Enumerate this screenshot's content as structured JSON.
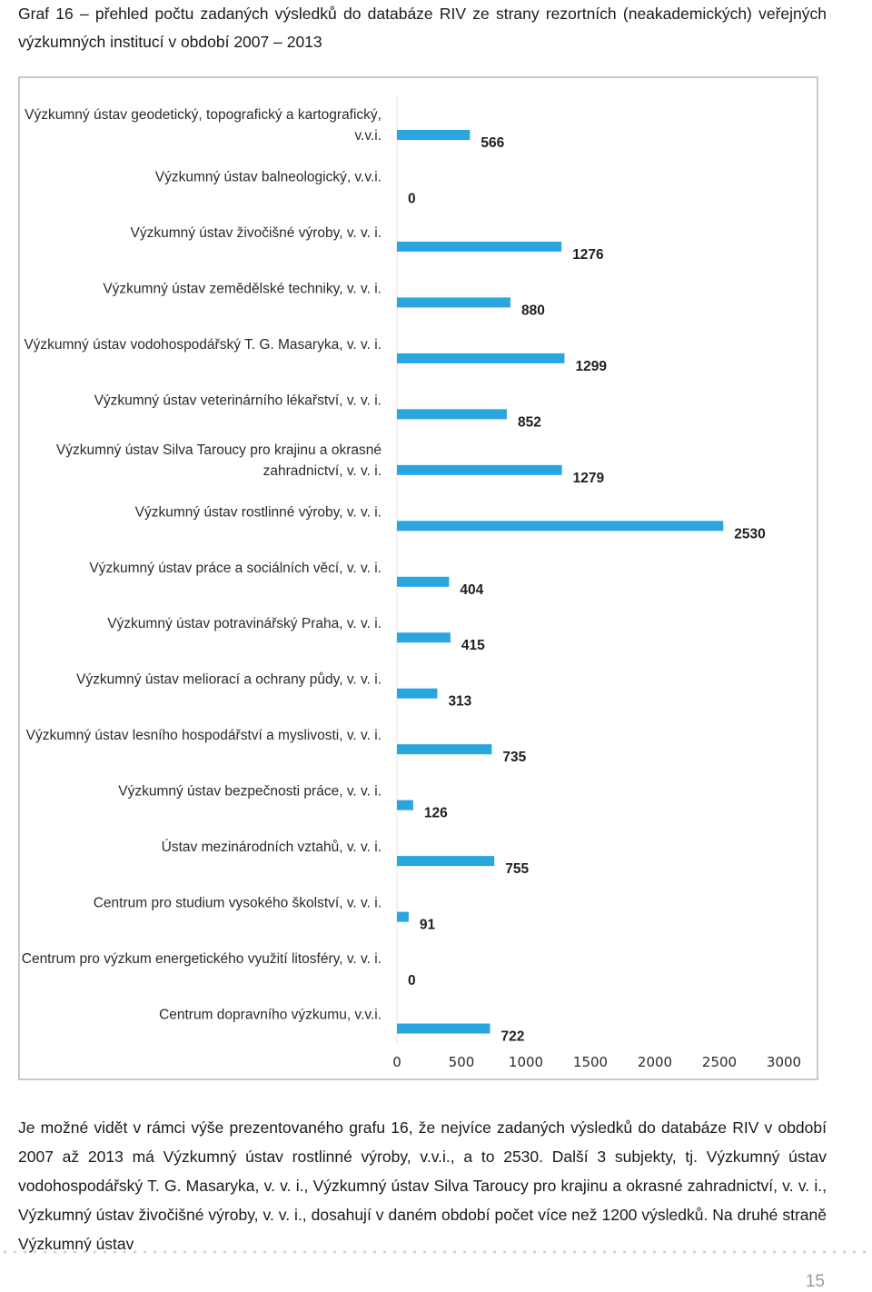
{
  "caption": "Graf 16 – přehled počtu zadaných výsledků do databáze RIV ze strany rezortních (neakademických) veřejných výzkumných institucí v období 2007 – 2013",
  "chart_data": {
    "type": "bar",
    "orientation": "horizontal",
    "categories": [
      [
        "Výzkumný ústav geodetický, topografický a kartografický,",
        "v.v.i."
      ],
      [
        "Výzkumný ústav balneologický, v.v.i."
      ],
      [
        "Výzkumný ústav živočišné výroby, v. v. i."
      ],
      [
        "Výzkumný ústav zemědělské techniky, v. v. i."
      ],
      [
        "Výzkumný ústav vodohospodářský T. G. Masaryka, v. v. i."
      ],
      [
        "Výzkumný ústav veterinárního lékařství, v. v. i."
      ],
      [
        "Výzkumný ústav Silva Taroucy pro krajinu a okrasné",
        "zahradnictví, v. v. i."
      ],
      [
        "Výzkumný ústav rostlinné výroby, v. v. i."
      ],
      [
        "Výzkumný ústav práce a sociálních věcí, v. v. i."
      ],
      [
        "Výzkumný ústav potravinářský Praha, v. v. i."
      ],
      [
        "Výzkumný ústav meliorací a ochrany půdy, v. v. i."
      ],
      [
        "Výzkumný ústav lesního hospodářství a myslivosti, v. v. i."
      ],
      [
        "Výzkumný ústav bezpečnosti práce, v. v. i."
      ],
      [
        "Ústav mezinárodních vztahů, v. v. i."
      ],
      [
        "Centrum pro studium vysokého školství, v. v. i."
      ],
      [
        "Centrum pro výzkum energetického využití litosféry, v. v. i."
      ],
      [
        "Centrum dopravního výzkumu, v.v.i."
      ]
    ],
    "values": [
      566,
      0,
      1276,
      880,
      1299,
      852,
      1279,
      2530,
      404,
      415,
      313,
      735,
      126,
      755,
      91,
      0,
      722
    ],
    "xticks": [
      "0",
      "500",
      "1000",
      "1500",
      "2000",
      "2500",
      "3000"
    ],
    "xlim": [
      0,
      3000
    ],
    "bar_color": "#2aa6de",
    "grid": false,
    "legend": false
  },
  "body_text": "Je možné vidět v rámci výše prezentovaného grafu 16, že nejvíce zadaných výsledků do databáze RIV v období 2007 až 2013 má Výzkumný ústav rostlinné výroby, v.v.i., a to 2530. Další 3 subjekty, tj. Výzkumný ústav vodohospodářský T. G. Masaryka, v. v. i., Výzkumný ústav Silva Taroucy pro krajinu a okrasné zahradnictví, v. v. i., Výzkumný ústav živočišné výroby, v. v. i., dosahují v daném období počet více než 1200 výsledků. Na druhé straně Výzkumný ústav",
  "page_number": "15"
}
